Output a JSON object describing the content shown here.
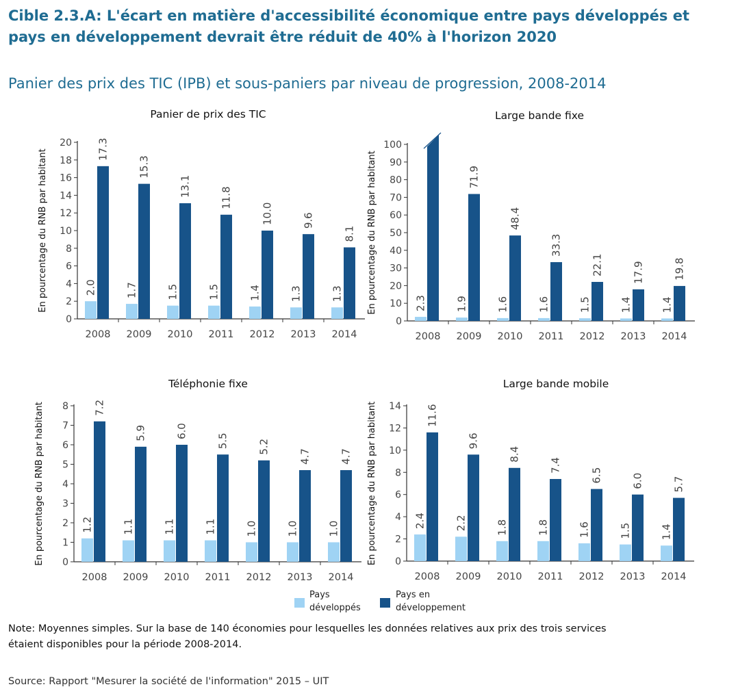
{
  "header": {
    "title": "Cible 2.3.A: L'écart en matière d'accessibilité économique entre pays développés et pays en développement devrait être réduit de 40% à l'horizon 2020",
    "subtitle": "Panier des prix des TIC (IPB) et sous-paniers par niveau de progression, 2008-2014"
  },
  "colors": {
    "developed": "#9fd3f4",
    "developing": "#175389",
    "axis": "#333333",
    "title": "#1f6c92"
  },
  "chart_data": [
    {
      "type": "bar",
      "title": "Panier de prix des TIC",
      "xlabel": "",
      "ylabel": "En pourcentage du RNB par habitant",
      "categories": [
        "2008",
        "2009",
        "2010",
        "2011",
        "2012",
        "2013",
        "2014"
      ],
      "ylim": [
        0,
        20
      ],
      "yticks": [
        0,
        2,
        4,
        6,
        8,
        10,
        12,
        14,
        16,
        18,
        20
      ],
      "series": [
        {
          "name": "Pays développés",
          "values": [
            2.0,
            1.7,
            1.5,
            1.5,
            1.4,
            1.3,
            1.3
          ],
          "labels": [
            "2.0",
            "1.7",
            "1.5",
            "1.5",
            "1.4",
            "1.3",
            "1.3"
          ]
        },
        {
          "name": "Pays en développement",
          "values": [
            17.3,
            15.3,
            13.1,
            11.8,
            10.0,
            9.6,
            8.1
          ],
          "labels": [
            "17.3",
            "15.3",
            "13.1",
            "11.8",
            "10.0",
            "9.6",
            "8.1"
          ]
        }
      ]
    },
    {
      "type": "bar",
      "title": "Large bande fixe",
      "xlabel": "",
      "ylabel": "En pourcentage du RNB par habitant",
      "categories": [
        "2008",
        "2009",
        "2010",
        "2011",
        "2012",
        "2013",
        "2014"
      ],
      "ylim": [
        0,
        100
      ],
      "yticks": [
        0,
        10,
        20,
        30,
        40,
        50,
        60,
        70,
        80,
        90,
        100
      ],
      "clipped_first_bar": true,
      "series": [
        {
          "name": "Pays développés",
          "values": [
            2.3,
            1.9,
            1.6,
            1.6,
            1.5,
            1.4,
            1.4
          ],
          "labels": [
            "2.3",
            "1.9",
            "1.6",
            "1.6",
            "1.5",
            "1.4",
            "1.4"
          ]
        },
        {
          "name": "Pays en développement",
          "values": [
            100,
            71.9,
            48.4,
            33.3,
            22.1,
            17.9,
            19.8
          ],
          "labels": [
            "",
            "71.9",
            "48.4",
            "33.3",
            "22.1",
            "17.9",
            "19.8"
          ]
        }
      ]
    },
    {
      "type": "bar",
      "title": "Téléphonie fixe",
      "xlabel": "",
      "ylabel": "En pourcentage du RNB par habitant",
      "categories": [
        "2008",
        "2009",
        "2010",
        "2011",
        "2012",
        "2013",
        "2014"
      ],
      "ylim": [
        0,
        8
      ],
      "yticks": [
        0,
        1,
        2,
        3,
        4,
        5,
        6,
        7,
        8
      ],
      "series": [
        {
          "name": "Pays développés",
          "values": [
            1.2,
            1.1,
            1.1,
            1.1,
            1.0,
            1.0,
            1.0
          ],
          "labels": [
            "1.2",
            "1.1",
            "1.1",
            "1.1",
            "1.0",
            "1.0",
            "1.0"
          ]
        },
        {
          "name": "Pays en développement",
          "values": [
            7.2,
            5.9,
            6.0,
            5.5,
            5.2,
            4.7,
            4.7
          ],
          "labels": [
            "7.2",
            "5.9",
            "6.0",
            "5.5",
            "5.2",
            "4.7",
            "4.7"
          ]
        }
      ]
    },
    {
      "type": "bar",
      "title": "Large bande mobile",
      "xlabel": "",
      "ylabel": "En pourcentage du RNB par habitant",
      "categories": [
        "2008",
        "2009",
        "2010",
        "2011",
        "2012",
        "2013",
        "2014"
      ],
      "ylim": [
        0,
        14
      ],
      "yticks": [
        0,
        2,
        4,
        6,
        8,
        10,
        12,
        14
      ],
      "series": [
        {
          "name": "Pays développés",
          "values": [
            2.4,
            2.2,
            1.8,
            1.8,
            1.6,
            1.5,
            1.4
          ],
          "labels": [
            "2.4",
            "2.2",
            "1.8",
            "1.8",
            "1.6",
            "1.5",
            "1.4"
          ]
        },
        {
          "name": "Pays en développement",
          "values": [
            11.6,
            9.6,
            8.4,
            7.4,
            6.5,
            6.0,
            5.7
          ],
          "labels": [
            "11.6",
            "9.6",
            "8.4",
            "7.4",
            "6.5",
            "6.0",
            "5.7"
          ]
        }
      ]
    }
  ],
  "legend": {
    "developed_line1": "Pays",
    "developed_line2": "développés",
    "developing_line1": "Pays en",
    "developing_line2": "développement"
  },
  "note": "Note: Moyennes simples. Sur la base de 140 économies pour lesquelles les données relatives aux prix des trois services étaient disponibles pour la période 2008-2014.",
  "source": "Source: Rapport \"Mesurer la société de l'information\" 2015 – UIT"
}
